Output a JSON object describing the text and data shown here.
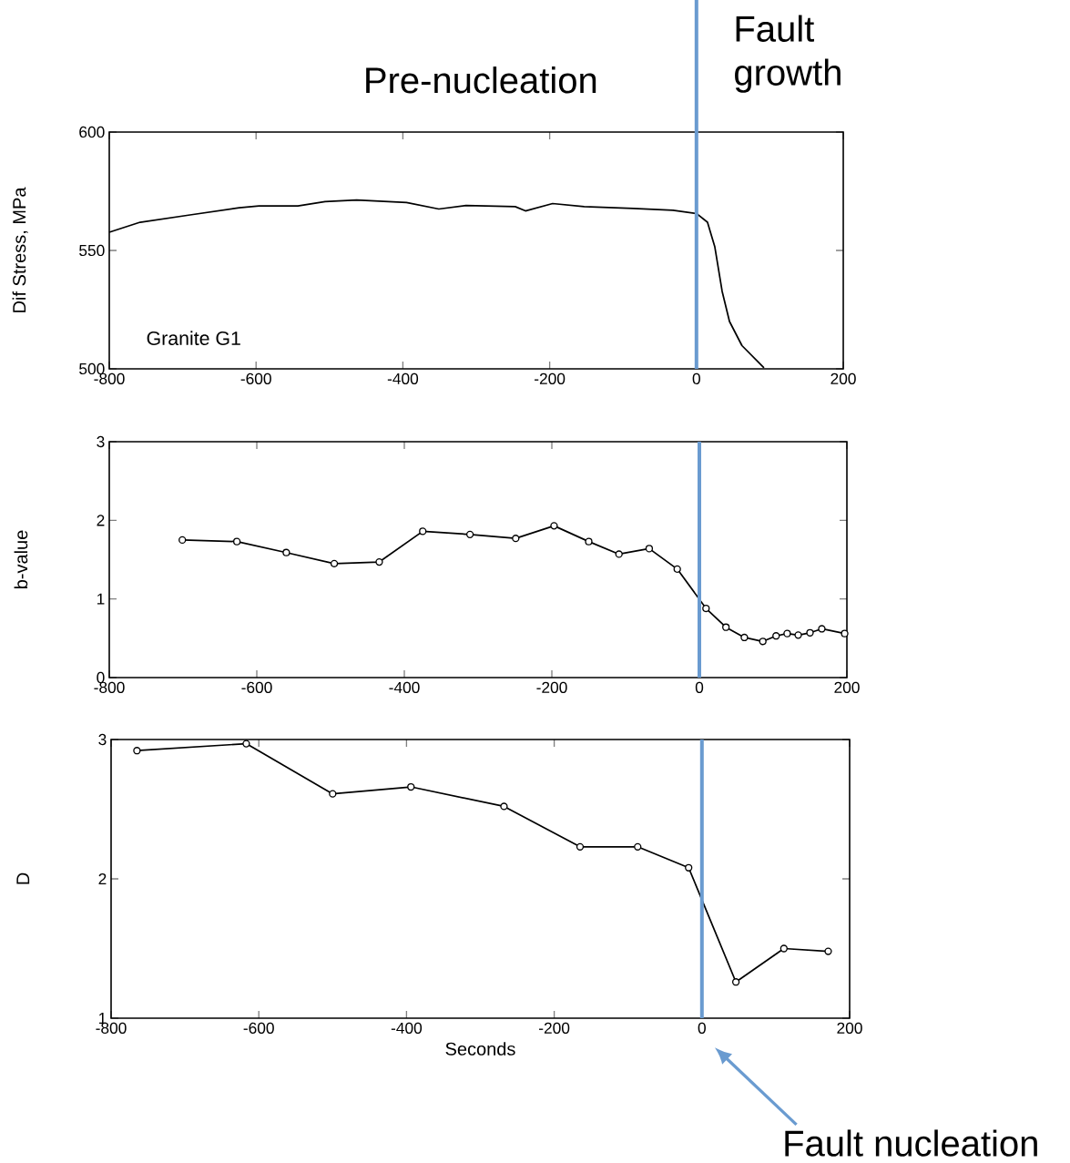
{
  "chart_data": [
    {
      "type": "line",
      "ylabel": "Dif Stress, MPa",
      "xlim": [
        -800,
        200
      ],
      "ylim": [
        500,
        600
      ],
      "xticks": [
        -800,
        -600,
        -400,
        -200,
        0,
        200
      ],
      "yticks": [
        500,
        550,
        600
      ],
      "marker": "none",
      "annotations": [
        "Granite G1",
        "Pre-nucleation",
        "Fault growth"
      ],
      "ref_lines": [
        {
          "axis": "x",
          "value": 0,
          "color": "#6a9bd0"
        }
      ],
      "series": [
        {
          "color": "#000000",
          "x": [
            -800,
            -758,
            -690,
            -623,
            -596,
            -543,
            -506,
            -463,
            -395,
            -351,
            -314,
            -247,
            -233,
            -196,
            -153,
            -86,
            -32,
            0,
            15,
            25,
            35,
            45,
            62,
            92
          ],
          "values": [
            557.7,
            561.9,
            565,
            568,
            568.8,
            568.8,
            570.6,
            571.3,
            570.2,
            567.5,
            569,
            568.5,
            566.7,
            569.8,
            568.5,
            567.7,
            567,
            565.6,
            561.9,
            551.5,
            532.7,
            520,
            509.8,
            500.4
          ]
        }
      ]
    },
    {
      "type": "line",
      "ylabel": "b-value",
      "xlim": [
        -800,
        200
      ],
      "ylim": [
        0,
        3
      ],
      "xticks": [
        -800,
        -600,
        -400,
        -200,
        0,
        200
      ],
      "yticks": [
        0,
        1,
        2,
        3
      ],
      "marker": "circle",
      "ref_lines": [
        {
          "axis": "x",
          "value": 0,
          "color": "#6a9bd0"
        }
      ],
      "series": [
        {
          "color": "#000000",
          "x": [
            -701,
            -627,
            -560,
            -495,
            -434,
            -375,
            -311,
            -249,
            -197,
            -150,
            -109,
            -68,
            -30,
            9,
            36,
            61,
            86,
            104,
            119,
            134,
            150,
            166,
            197
          ],
          "values": [
            1.75,
            1.73,
            1.59,
            1.45,
            1.47,
            1.86,
            1.82,
            1.77,
            1.93,
            1.73,
            1.57,
            1.64,
            1.38,
            0.88,
            0.64,
            0.51,
            0.46,
            0.53,
            0.56,
            0.54,
            0.57,
            0.62,
            0.56
          ]
        }
      ]
    },
    {
      "type": "line",
      "ylabel": "D",
      "xlabel": "Seconds",
      "xlim": [
        -800,
        200
      ],
      "ylim": [
        1,
        3
      ],
      "xticks": [
        -800,
        -600,
        -400,
        -200,
        0,
        200
      ],
      "yticks": [
        1,
        2,
        3
      ],
      "marker": "circle",
      "annotations": [
        "Fault nucleation"
      ],
      "ref_lines": [
        {
          "axis": "x",
          "value": 0,
          "color": "#6a9bd0"
        }
      ],
      "series": [
        {
          "color": "#000000",
          "x": [
            -765,
            -617,
            -500,
            -394,
            -268,
            -165,
            -87,
            -18,
            46,
            111,
            171
          ],
          "values": [
            2.92,
            2.97,
            2.61,
            2.66,
            2.52,
            2.23,
            2.23,
            2.08,
            1.26,
            1.5,
            1.48
          ]
        }
      ]
    }
  ]
}
